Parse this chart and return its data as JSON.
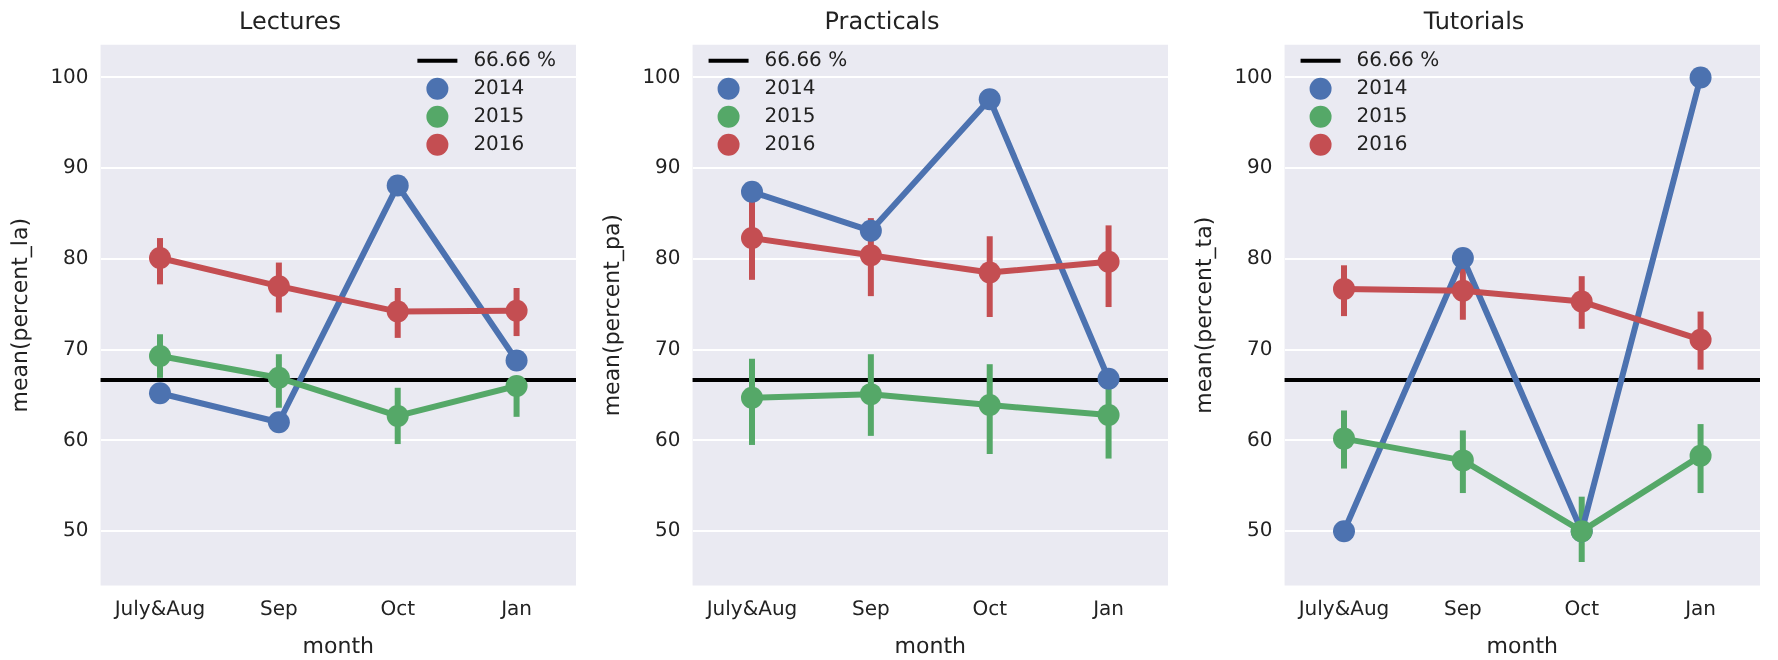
{
  "chart_data": [
    {
      "type": "line",
      "title": "Lectures",
      "xlabel": "month",
      "ylabel": "mean(percent_la)",
      "categories": [
        "July&Aug",
        "Sep",
        "Oct",
        "Jan"
      ],
      "ylim": [
        44,
        103.6
      ],
      "yticks": [
        50,
        60,
        70,
        80,
        90,
        100
      ],
      "grid": "y",
      "legend": "top right",
      "marker": "circle",
      "ref_lines": [
        {
          "axis": "y",
          "value": 66.66,
          "label": "66.66 %",
          "color": "#000000"
        }
      ],
      "series": [
        {
          "name": "2014",
          "color": "#4c72b0",
          "values": [
            65.2,
            62.0,
            88.1,
            68.8
          ]
        },
        {
          "name": "2015",
          "color": "#55a868",
          "values": [
            69.3,
            66.9,
            62.7,
            66.0
          ],
          "errors": [
            [
              66.9,
              71.7
            ],
            [
              63.6,
              69.5
            ],
            [
              59.6,
              65.8
            ],
            [
              62.6,
              66.0
            ]
          ]
        },
        {
          "name": "2016",
          "color": "#c44e52",
          "values": [
            80.1,
            77.0,
            74.2,
            74.3
          ],
          "errors": [
            [
              77.2,
              82.3
            ],
            [
              74.1,
              79.6
            ],
            [
              71.3,
              76.8
            ],
            [
              71.5,
              76.8
            ]
          ]
        }
      ]
    },
    {
      "type": "line",
      "title": "Practicals",
      "xlabel": "month",
      "ylabel": "mean(percent_pa)",
      "categories": [
        "July&Aug",
        "Sep",
        "Oct",
        "Jan"
      ],
      "ylim": [
        44,
        103.6
      ],
      "yticks": [
        50,
        60,
        70,
        80,
        90,
        100
      ],
      "grid": "y",
      "legend": "top left",
      "marker": "circle",
      "ref_lines": [
        {
          "axis": "y",
          "value": 66.66,
          "label": "66.66 %",
          "color": "#000000"
        }
      ],
      "series": [
        {
          "name": "2014",
          "color": "#4c72b0",
          "values": [
            87.4,
            83.1,
            97.6,
            66.8
          ]
        },
        {
          "name": "2015",
          "color": "#55a868",
          "values": [
            64.7,
            65.1,
            63.9,
            62.8
          ],
          "errors": [
            [
              59.5,
              69.0
            ],
            [
              60.5,
              69.5
            ],
            [
              58.5,
              68.4
            ],
            [
              58.0,
              67.3
            ]
          ]
        },
        {
          "name": "2016",
          "color": "#c44e52",
          "values": [
            82.3,
            80.4,
            78.5,
            79.7
          ],
          "errors": [
            [
              77.7,
              87.0
            ],
            [
              75.9,
              84.5
            ],
            [
              73.6,
              82.5
            ],
            [
              74.7,
              83.7
            ]
          ]
        }
      ]
    },
    {
      "type": "line",
      "title": "Tutorials",
      "xlabel": "month",
      "ylabel": "mean(percent_ta)",
      "categories": [
        "July&Aug",
        "Sep",
        "Oct",
        "Jan"
      ],
      "ylim": [
        44,
        103.6
      ],
      "yticks": [
        50,
        60,
        70,
        80,
        90,
        100
      ],
      "grid": "y",
      "legend": "top left",
      "marker": "circle",
      "ref_lines": [
        {
          "axis": "y",
          "value": 66.66,
          "label": "66.66 %",
          "color": "#000000"
        }
      ],
      "series": [
        {
          "name": "2014",
          "color": "#4c72b0",
          "values": [
            50.0,
            80.1,
            50.0,
            100.0
          ]
        },
        {
          "name": "2015",
          "color": "#55a868",
          "values": [
            60.2,
            57.8,
            50.0,
            58.3
          ],
          "errors": [
            [
              56.9,
              63.3
            ],
            [
              54.2,
              61.1
            ],
            [
              46.6,
              53.8
            ],
            [
              54.2,
              61.8
            ]
          ]
        },
        {
          "name": "2016",
          "color": "#c44e52",
          "values": [
            76.7,
            76.5,
            75.3,
            71.1
          ],
          "errors": [
            [
              73.7,
              79.3
            ],
            [
              73.3,
              79.3
            ],
            [
              72.3,
              78.1
            ],
            [
              67.8,
              74.2
            ]
          ]
        }
      ]
    }
  ]
}
